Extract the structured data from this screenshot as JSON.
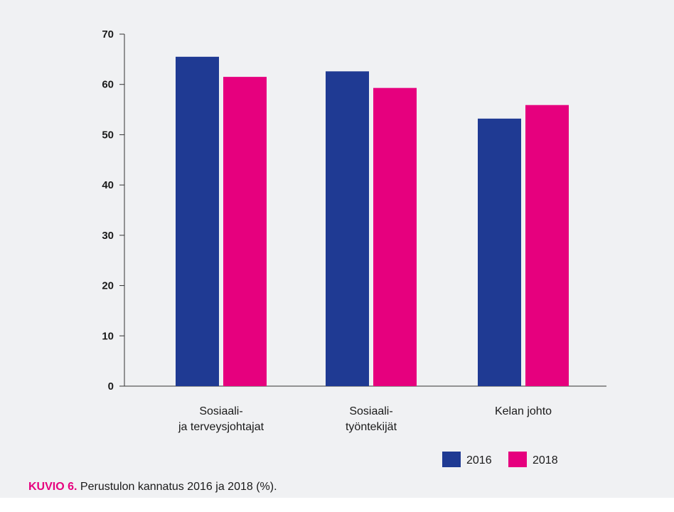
{
  "chart_data": {
    "type": "bar",
    "categories": [
      [
        "Sosiaali-",
        "ja terveysjohtajat"
      ],
      [
        "Sosiaali-",
        "työntekijät"
      ],
      [
        "Kelan johto"
      ]
    ],
    "series": [
      {
        "name": "2016",
        "color": "#1f3a93",
        "values": [
          65.5,
          62.6,
          53.2
        ]
      },
      {
        "name": "2018",
        "color": "#e6007e",
        "values": [
          61.5,
          59.3,
          55.9
        ]
      }
    ],
    "yticks": [
      "0",
      "10",
      "20",
      "30",
      "40",
      "50",
      "60",
      "70"
    ],
    "ylim": [
      0,
      70
    ],
    "grid": false,
    "legend_position": "bottom-right"
  },
  "caption": {
    "tag": "KUVIO 6.",
    "text": " Perustulon kannatus 2016 ja 2018 (%)."
  }
}
